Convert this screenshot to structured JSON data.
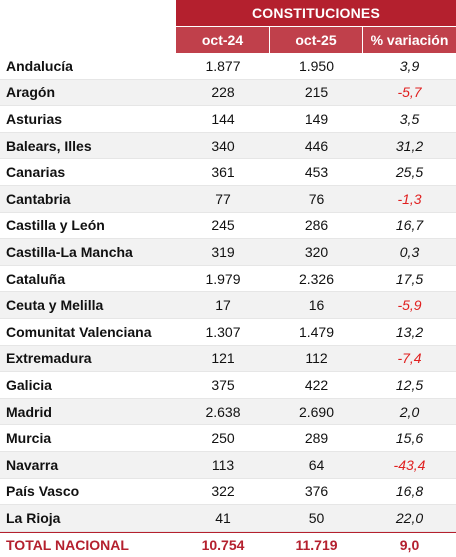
{
  "header": {
    "title": "CONSTITUCIONES",
    "col_oct24": "oct-24",
    "col_oct25": "oct-25",
    "col_var": "% variación"
  },
  "colors": {
    "header_bg": "#b4202e",
    "subheader_bg": "#c0404b",
    "negative": "#e02020",
    "total_text": "#b4202e"
  },
  "rows": [
    {
      "region": "Andalucía",
      "oct24": "1.877",
      "oct25": "1.950",
      "var": "3,9",
      "neg": false
    },
    {
      "region": "Aragón",
      "oct24": "228",
      "oct25": "215",
      "var": "-5,7",
      "neg": true
    },
    {
      "region": "Asturias",
      "oct24": "144",
      "oct25": "149",
      "var": "3,5",
      "neg": false
    },
    {
      "region": "Balears, Illes",
      "oct24": "340",
      "oct25": "446",
      "var": "31,2",
      "neg": false
    },
    {
      "region": "Canarias",
      "oct24": "361",
      "oct25": "453",
      "var": "25,5",
      "neg": false
    },
    {
      "region": "Cantabria",
      "oct24": "77",
      "oct25": "76",
      "var": "-1,3",
      "neg": true
    },
    {
      "region": "Castilla y León",
      "oct24": "245",
      "oct25": "286",
      "var": "16,7",
      "neg": false
    },
    {
      "region": "Castilla-La Mancha",
      "oct24": "319",
      "oct25": "320",
      "var": "0,3",
      "neg": false
    },
    {
      "region": "Cataluña",
      "oct24": "1.979",
      "oct25": "2.326",
      "var": "17,5",
      "neg": false
    },
    {
      "region": "Ceuta y Melilla",
      "oct24": "17",
      "oct25": "16",
      "var": "-5,9",
      "neg": true
    },
    {
      "region": "Comunitat Valenciana",
      "oct24": "1.307",
      "oct25": "1.479",
      "var": "13,2",
      "neg": false
    },
    {
      "region": "Extremadura",
      "oct24": "121",
      "oct25": "112",
      "var": "-7,4",
      "neg": true
    },
    {
      "region": "Galicia",
      "oct24": "375",
      "oct25": "422",
      "var": "12,5",
      "neg": false
    },
    {
      "region": "Madrid",
      "oct24": "2.638",
      "oct25": "2.690",
      "var": "2,0",
      "neg": false
    },
    {
      "region": "Murcia",
      "oct24": "250",
      "oct25": "289",
      "var": "15,6",
      "neg": false
    },
    {
      "region": "Navarra",
      "oct24": "113",
      "oct25": "64",
      "var": "-43,4",
      "neg": true
    },
    {
      "region": "País Vasco",
      "oct24": "322",
      "oct25": "376",
      "var": "16,8",
      "neg": false
    },
    {
      "region": "La Rioja",
      "oct24": "41",
      "oct25": "50",
      "var": "22,0",
      "neg": false
    }
  ],
  "total": {
    "label": "TOTAL NACIONAL",
    "oct24": "10.754",
    "oct25": "11.719",
    "var": "9,0"
  }
}
